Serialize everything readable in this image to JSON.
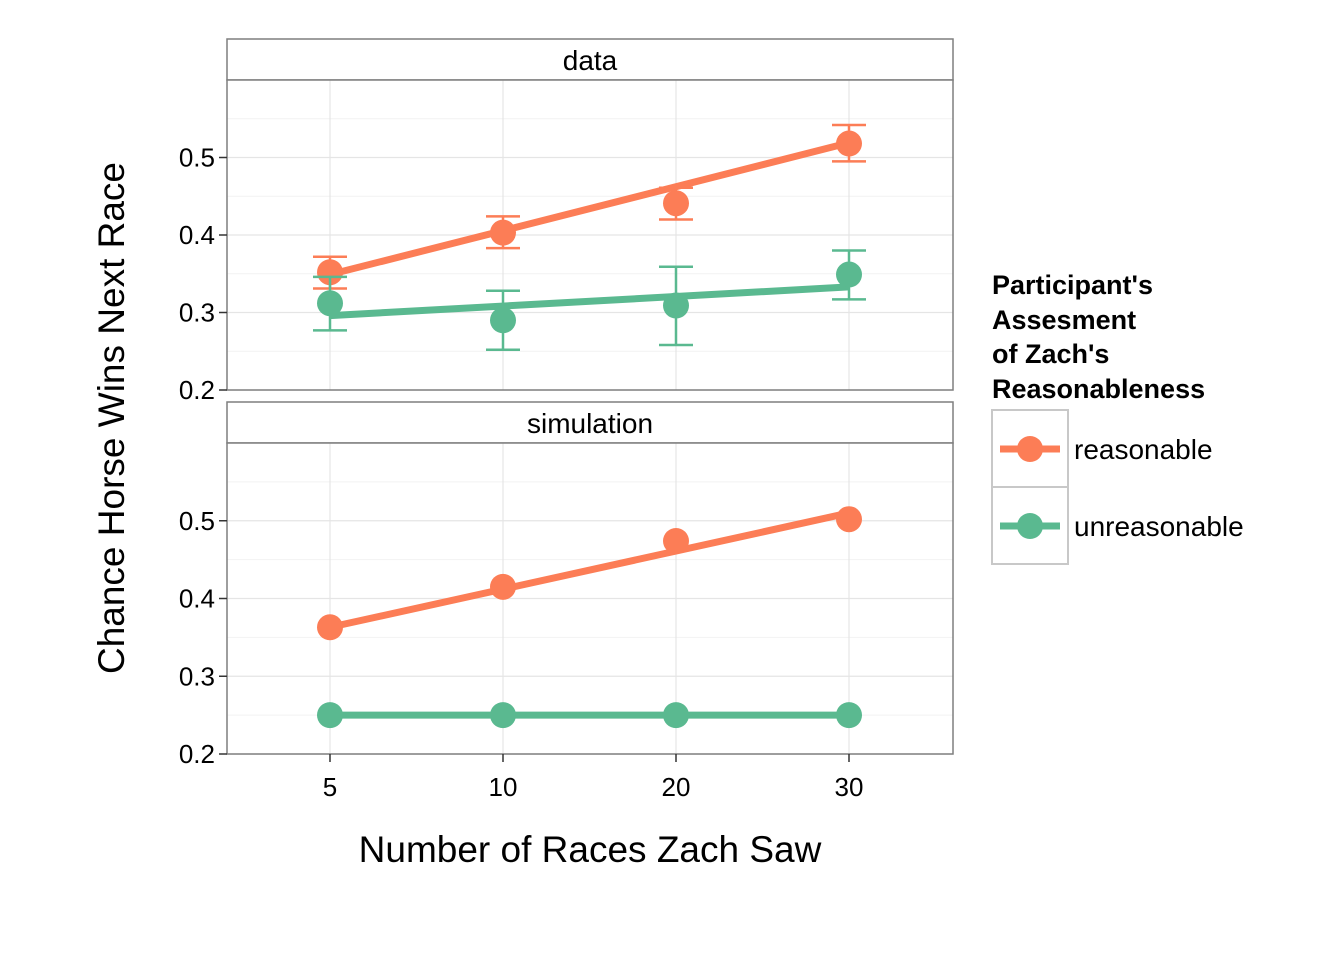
{
  "chart_data": {
    "type": "line",
    "x_axis_type": "categorical",
    "xlabel": "Number of Races Zach Saw",
    "ylabel": "Chance Horse Wins Next Race",
    "x_categories": [
      "5",
      "10",
      "20",
      "30"
    ],
    "ylim": [
      0.2,
      0.6
    ],
    "y_ticks": [
      "0.2",
      "0.3",
      "0.4",
      "0.5"
    ],
    "y_tick_values": [
      0.2,
      0.3,
      0.4,
      0.5
    ],
    "grid": true,
    "legend": {
      "title": [
        "Participant's",
        "Assesment",
        "of Zach's",
        "Reasonableness"
      ],
      "position": "right",
      "entries": [
        "reasonable",
        "unreasonable"
      ]
    },
    "colors": {
      "reasonable": "#fc7d56",
      "unreasonable": "#5ab990"
    },
    "panels": [
      {
        "label": "data",
        "points": {
          "reasonable": {
            "values": [
              0.352,
              0.403,
              0.441,
              0.518
            ],
            "error_low": [
              0.331,
              0.383,
              0.42,
              0.495
            ],
            "error_high": [
              0.372,
              0.424,
              0.461,
              0.542
            ]
          },
          "unreasonable": {
            "values": [
              0.312,
              0.29,
              0.309,
              0.349
            ],
            "error_low": [
              0.277,
              0.252,
              0.258,
              0.317
            ],
            "error_high": [
              0.346,
              0.328,
              0.359,
              0.38
            ]
          }
        },
        "fit_lines": {
          "reasonable": [
            [
              0.349,
              0.519
            ]
          ],
          "unreasonable": [
            [
              0.296,
              0.333
            ]
          ]
        }
      },
      {
        "label": "simulation",
        "points": {
          "reasonable": {
            "values": [
              0.363,
              0.415,
              0.474,
              0.502
            ]
          },
          "unreasonable": {
            "values": [
              0.25,
              0.25,
              0.25,
              0.25
            ]
          }
        },
        "fit_lines": {
          "reasonable": [
            [
              0.363,
              0.51
            ]
          ],
          "unreasonable": [
            [
              0.25,
              0.25
            ]
          ]
        }
      }
    ]
  }
}
